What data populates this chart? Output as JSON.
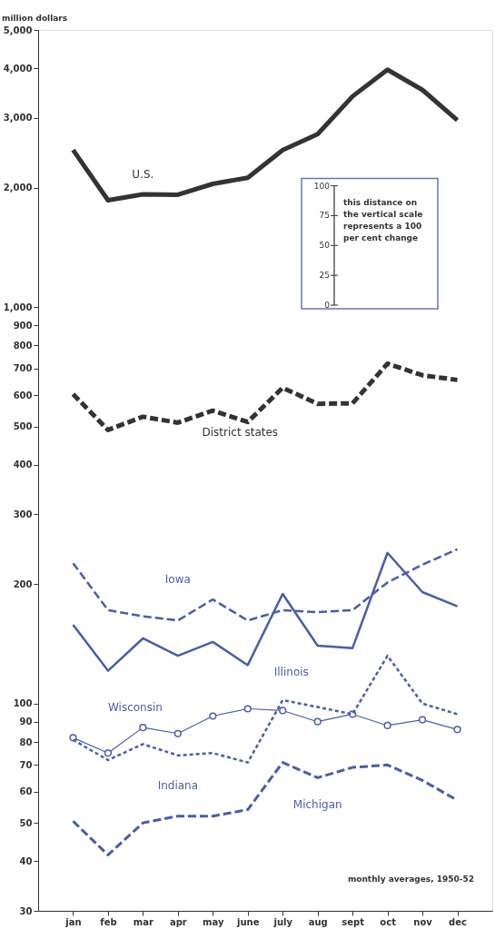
{
  "chart_data": {
    "type": "line",
    "ylabel": "million dollars",
    "categories": [
      "jan",
      "feb",
      "mar",
      "apr",
      "may",
      "june",
      "july",
      "aug",
      "sept",
      "oct",
      "nov",
      "dec"
    ],
    "series": [
      {
        "name": "U.S.",
        "color": "#333333",
        "line_style": "solid",
        "values": [
          2490,
          1860,
          1925,
          1920,
          2045,
          2120,
          2490,
          2730,
          3400,
          3970,
          3530,
          2960
        ]
      },
      {
        "name": "District states",
        "color": "#333333",
        "line_style": "dashed",
        "values": [
          603,
          490,
          529,
          511,
          548,
          513,
          626,
          570,
          572,
          720,
          673,
          655
        ]
      },
      {
        "name": "Iowa",
        "color": "#4a5da8",
        "line_style": "dashed",
        "values": [
          226,
          172,
          166,
          162,
          183,
          162,
          172,
          170,
          172,
          202,
          224,
          245
        ]
      },
      {
        "name": "Illinois",
        "color": "#4a5da8",
        "line_style": "solid",
        "values": [
          158,
          121,
          146,
          132,
          143,
          125,
          189,
          140,
          138,
          240,
          191,
          176
        ]
      },
      {
        "name": "Wisconsin",
        "color": "#4a5da8",
        "line_style": "solid",
        "marker": "circle",
        "values": [
          82,
          75,
          87,
          84,
          93,
          97,
          96,
          90,
          94,
          88,
          91,
          86
        ]
      },
      {
        "name": "Indiana",
        "color": "#4a5da8",
        "line_style": "dotted",
        "values": [
          81,
          72,
          79,
          74,
          75,
          71,
          102,
          98,
          94,
          132,
          100,
          94
        ]
      },
      {
        "name": "Michigan",
        "color": "#4a5da8",
        "line_style": "dashed",
        "values": [
          50.5,
          41.5,
          50,
          52,
          52,
          54,
          71,
          65,
          69,
          70,
          64,
          57
        ]
      }
    ],
    "log": "y",
    "ylim": [
      30,
      5000
    ],
    "yticks": [
      30,
      40,
      50,
      60,
      70,
      80,
      90,
      100,
      200,
      300,
      400,
      500,
      600,
      700,
      800,
      900,
      {
        "value": 1000,
        "label": "1,000"
      },
      {
        "value": 2000,
        "label": "2,000"
      },
      {
        "value": 3000,
        "label": "3,000"
      },
      {
        "value": 4000,
        "label": "4,000"
      },
      {
        "value": 5000,
        "label": "5,000"
      }
    ],
    "grid": false,
    "annotations": [
      "this distance on the vertical scale represents a 100 per cent change",
      "100",
      "75",
      "50",
      "25",
      "0",
      "monthly averages, 1950-52"
    ]
  }
}
